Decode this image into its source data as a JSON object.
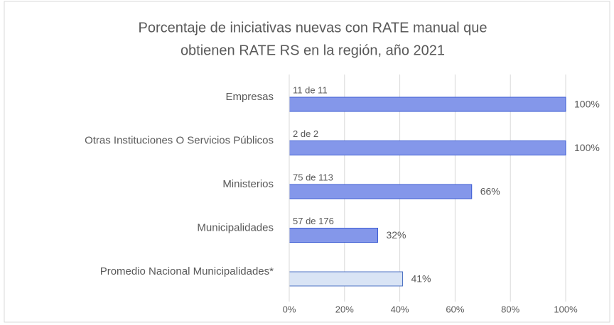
{
  "chart_data": {
    "type": "barh",
    "title": [
      "Porcentaje de iniciativas nuevas con RATE manual que",
      "obtienen RATE RS en la región, año  2021"
    ],
    "categories": [
      "Empresas",
      "Otras Instituciones O Servicios Públicos",
      "Ministerios",
      "Municipalidades",
      "Promedio Nacional Municipalidades*"
    ],
    "values": [
      100,
      100,
      66,
      32,
      41
    ],
    "value_labels": [
      "100%",
      "100%",
      "66%",
      "32%",
      "41%"
    ],
    "annotations": [
      "11 de 11",
      "2 de 2",
      "75 de 113",
      "57 de 176",
      null
    ],
    "colors": [
      "#8497ea",
      "#8497ea",
      "#8497ea",
      "#8497ea",
      "#d9e4f5"
    ],
    "xlim": [
      0,
      100
    ],
    "xticks": [
      {
        "value": 0,
        "label": "0%"
      },
      {
        "value": 20,
        "label": "20%"
      },
      {
        "value": 40,
        "label": "40%"
      },
      {
        "value": 60,
        "label": "60%"
      },
      {
        "value": 80,
        "label": "80%"
      },
      {
        "value": 100,
        "label": "100%"
      }
    ],
    "grid": true
  }
}
